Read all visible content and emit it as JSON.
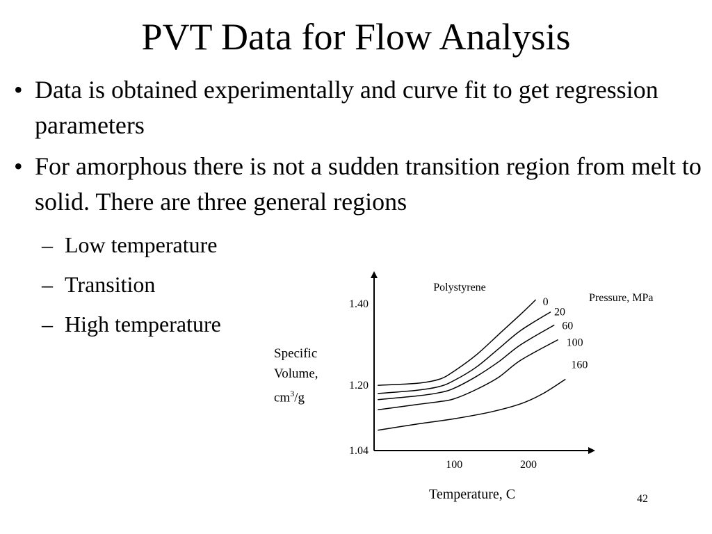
{
  "slide": {
    "title": "PVT Data for Flow Analysis",
    "bullets": [
      "Data is obtained experimentally and curve fit to get regression parameters",
      "For amorphous there is not a sudden transition region from melt to solid.  There are three general regions"
    ],
    "sub_bullets": [
      "Low temperature",
      "Transition",
      "High temperature"
    ],
    "bullet_glyph": "•",
    "dash_glyph": "–",
    "page_number": "42"
  },
  "chart_data": {
    "type": "line",
    "title": "Polystyrene",
    "legend_title": "Pressure, MPa",
    "ylabel_lines": [
      "Specific",
      "Volume,"
    ],
    "ylabel_unit": {
      "base": "cm",
      "sup": "3",
      "tail": "/g"
    },
    "xlabel": "Temperature, C",
    "x_ticks": [
      100,
      200
    ],
    "y_ticks": [
      1.04,
      1.2,
      1.4
    ],
    "y_tick_labels": [
      "1.04",
      "1.20",
      "1.40"
    ],
    "xlim": [
      -8,
      290
    ],
    "ylim": [
      1.04,
      1.48
    ],
    "grid": false,
    "series": [
      {
        "name": "0",
        "points": [
          [
            -3,
            1.2
          ],
          [
            50,
            1.205
          ],
          [
            80,
            1.215
          ],
          [
            100,
            1.235
          ],
          [
            130,
            1.275
          ],
          [
            160,
            1.325
          ],
          [
            190,
            1.375
          ],
          [
            210,
            1.41
          ]
        ]
      },
      {
        "name": "20",
        "points": [
          [
            -3,
            1.18
          ],
          [
            50,
            1.188
          ],
          [
            80,
            1.197
          ],
          [
            100,
            1.212
          ],
          [
            130,
            1.245
          ],
          [
            160,
            1.29
          ],
          [
            190,
            1.335
          ],
          [
            230,
            1.38
          ]
        ]
      },
      {
        "name": "60",
        "points": [
          [
            -3,
            1.165
          ],
          [
            50,
            1.174
          ],
          [
            80,
            1.182
          ],
          [
            100,
            1.193
          ],
          [
            130,
            1.222
          ],
          [
            160,
            1.258
          ],
          [
            190,
            1.3
          ],
          [
            235,
            1.348
          ]
        ]
      },
      {
        "name": "100",
        "points": [
          [
            -3,
            1.14
          ],
          [
            50,
            1.153
          ],
          [
            80,
            1.16
          ],
          [
            100,
            1.167
          ],
          [
            130,
            1.19
          ],
          [
            160,
            1.22
          ],
          [
            190,
            1.262
          ],
          [
            240,
            1.312
          ]
        ]
      },
      {
        "name": "160",
        "points": [
          [
            -3,
            1.09
          ],
          [
            50,
            1.105
          ],
          [
            100,
            1.118
          ],
          [
            150,
            1.135
          ],
          [
            190,
            1.155
          ],
          [
            220,
            1.18
          ],
          [
            250,
            1.215
          ]
        ]
      }
    ]
  }
}
